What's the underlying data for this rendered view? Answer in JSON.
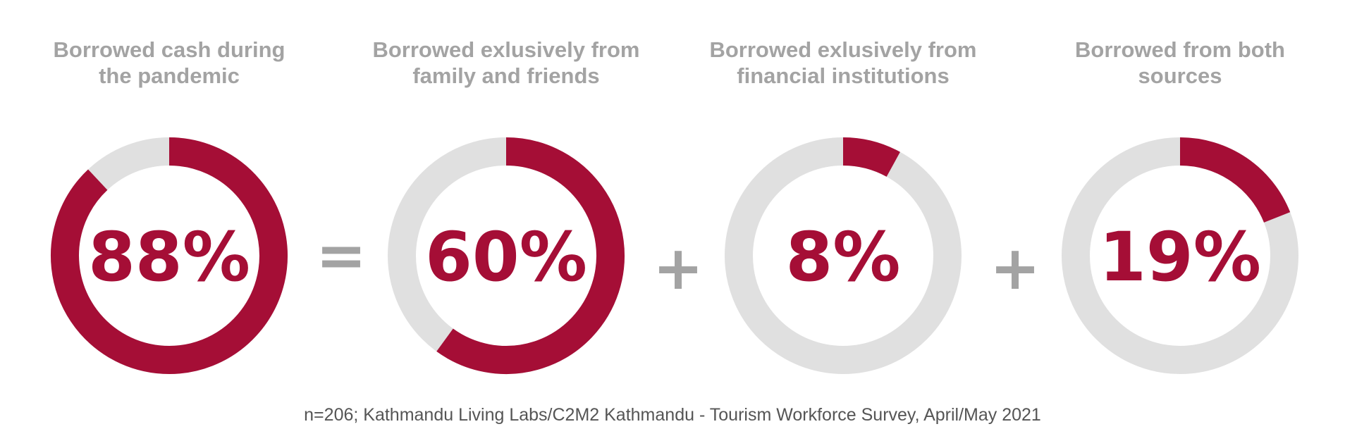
{
  "chart_data": {
    "type": "donut",
    "colors": {
      "filled": "#a50e36",
      "track": "#e0e0e0",
      "title_text": "#a3a3a3",
      "operator_text": "#a3a3a3",
      "source_text": "#555555"
    },
    "panels": [
      {
        "title_lines": [
          "Borrowed cash during",
          "the pandemic"
        ],
        "value": 88,
        "label": "88%"
      },
      {
        "title_lines": [
          "Borrowed exlusively from",
          "family and friends"
        ],
        "value": 60,
        "label": "60%"
      },
      {
        "title_lines": [
          "Borrowed exlusively from",
          "financial institutions"
        ],
        "value": 8,
        "label": "8%"
      },
      {
        "title_lines": [
          "Borrowed from both",
          "sources"
        ],
        "value": 19,
        "label": "19%"
      }
    ],
    "operators": [
      "=",
      "+",
      "+"
    ],
    "source": "n=206; Kathmandu Living Labs/C2M2 Kathmandu - Tourism Workforce Survey, April/May 2021"
  }
}
